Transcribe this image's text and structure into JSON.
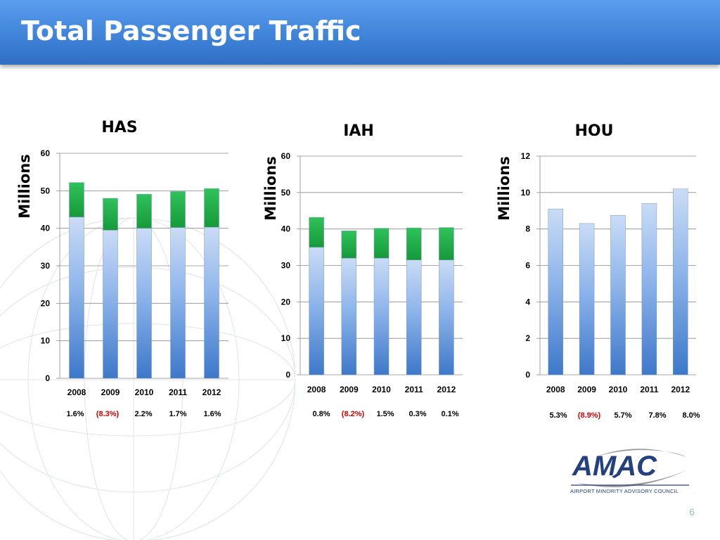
{
  "slide": {
    "title": "Total Passenger Traffic",
    "page_number": "6"
  },
  "logo": {
    "text": "AMAC",
    "subtitle": "AIRPORT MINORITY ADVISORY COUNCIL",
    "colors": {
      "text": "#24407f",
      "swoosh": "#9a9a9a"
    }
  },
  "colors": {
    "header": "#3f84da",
    "bar_blue": "#4a86d4",
    "bar_green": "#22b24c",
    "negative": "#d40000"
  },
  "chart_data": [
    {
      "type": "bar",
      "stacked": true,
      "title": "HAS",
      "ylabel": "Millions",
      "ylim": [
        0,
        60
      ],
      "yticks": [
        0,
        10,
        20,
        30,
        40,
        50,
        60
      ],
      "grid": true,
      "categories": [
        "2008",
        "2009",
        "2010",
        "2011",
        "2012"
      ],
      "series": [
        {
          "color": "#4a86d4",
          "values": [
            43,
            39.5,
            40,
            40.2,
            40.3
          ]
        },
        {
          "color": "#22b24c",
          "values": [
            9.2,
            8.5,
            9.1,
            9.6,
            10.3
          ]
        }
      ],
      "annotations": [
        "1.6%",
        "(8.3%)",
        "2.2%",
        "1.7%",
        "1.6%"
      ],
      "annotation_negative": [
        false,
        true,
        false,
        false,
        false
      ]
    },
    {
      "type": "bar",
      "stacked": true,
      "title": "IAH",
      "ylabel": "Millions",
      "ylim": [
        0,
        60
      ],
      "yticks": [
        0,
        10,
        20,
        30,
        40,
        50,
        60
      ],
      "grid": true,
      "categories": [
        "2008",
        "2009",
        "2010",
        "2011",
        "2012"
      ],
      "series": [
        {
          "color": "#4a86d4",
          "values": [
            35,
            32,
            32,
            31.5,
            31.5
          ]
        },
        {
          "color": "#22b24c",
          "values": [
            8.2,
            7.5,
            8.2,
            8.8,
            8.9
          ]
        }
      ],
      "annotations": [
        "0.8%",
        "(8.2%)",
        "1.5%",
        "0.3%",
        "0.1%"
      ],
      "annotation_negative": [
        false,
        true,
        false,
        false,
        false
      ]
    },
    {
      "type": "bar",
      "stacked": false,
      "title": "HOU",
      "ylabel": "Millions",
      "ylim": [
        0,
        12
      ],
      "yticks": [
        0,
        2,
        4,
        6,
        8,
        10,
        12
      ],
      "grid": true,
      "categories": [
        "2008",
        "2009",
        "2010",
        "2011",
        "2012"
      ],
      "series": [
        {
          "color": "#4a86d4",
          "values": [
            9.1,
            8.3,
            8.75,
            9.4,
            10.2
          ]
        }
      ],
      "annotations": [
        "5.3%",
        "(8.9%)",
        "5.7%",
        "7.8%",
        "8.0%"
      ],
      "annotation_negative": [
        false,
        true,
        false,
        false,
        false
      ]
    }
  ]
}
